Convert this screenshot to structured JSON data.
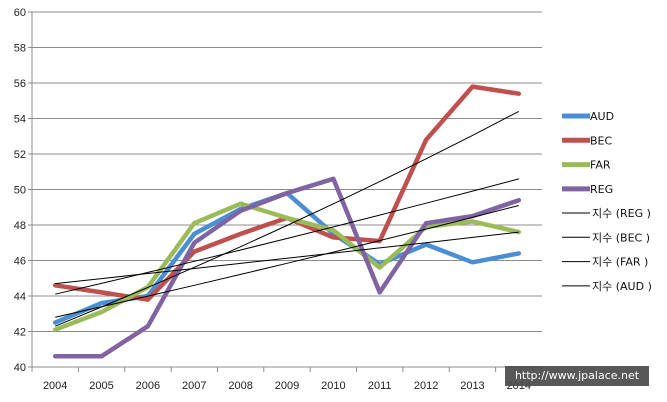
{
  "chart_data": {
    "type": "line",
    "categories": [
      "2004",
      "2005",
      "2006",
      "2007",
      "2008",
      "2009",
      "2010",
      "2011",
      "2012",
      "2013",
      "2014"
    ],
    "ylim": [
      40,
      60
    ],
    "yticks": [
      40,
      42,
      44,
      46,
      48,
      50,
      52,
      54,
      56,
      58,
      60
    ],
    "grid": "horizontal",
    "legend_position": "right",
    "series": [
      {
        "name": "AUD",
        "color": "#4a8fd4",
        "values": [
          42.5,
          43.6,
          44.0,
          47.5,
          48.9,
          49.8,
          47.5,
          45.8,
          46.9,
          45.9,
          46.4
        ]
      },
      {
        "name": "BEC",
        "color": "#c0504d",
        "values": [
          44.6,
          44.2,
          43.8,
          46.5,
          47.5,
          48.4,
          47.3,
          47.1,
          52.8,
          55.8,
          55.4
        ]
      },
      {
        "name": "FAR",
        "color": "#9bbb59",
        "values": [
          42.1,
          43.1,
          44.5,
          48.1,
          49.2,
          48.4,
          47.7,
          45.6,
          47.9,
          48.2,
          47.6
        ]
      },
      {
        "name": "REG",
        "color": "#8064a2",
        "values": [
          40.6,
          40.6,
          42.3,
          47.0,
          48.8,
          49.8,
          50.6,
          44.2,
          48.1,
          48.5,
          49.4
        ]
      }
    ],
    "trendlines": [
      {
        "name": "지수 (REG )",
        "color": "#000000",
        "values": [
          42.8,
          49.1
        ]
      },
      {
        "name": "지수 (BEC )",
        "color": "#000000",
        "values": [
          42.3,
          54.4
        ]
      },
      {
        "name": "지수 (FAR )",
        "color": "#000000",
        "values": [
          44.1,
          50.6
        ]
      },
      {
        "name": "지수 (AUD )",
        "color": "#000000",
        "values": [
          44.7,
          47.6
        ]
      }
    ]
  },
  "watermark": "http://www.jpalace.net"
}
